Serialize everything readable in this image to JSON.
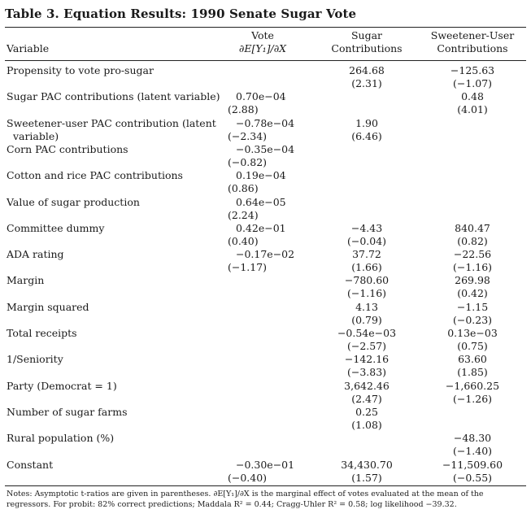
{
  "title": "Table 3.  Equation Results: 1990 Senate Sugar Vote",
  "columns": {
    "variable": "Variable",
    "vote_line1": "Vote",
    "vote_line2": "∂E[Y₁]/∂X",
    "sugar_line1": "Sugar",
    "sugar_line2": "Contributions",
    "sweet_line1": "Sweetener-User",
    "sweet_line2": "Contributions"
  },
  "rows": [
    {
      "label": "Propensity to vote pro-sugar",
      "vote": "",
      "vote_t": "",
      "sugar": "264.68",
      "sugar_t": "(2.31)",
      "sweet": "−125.63",
      "sweet_t": "(−1.07)"
    },
    {
      "label": "Sugar PAC contributions (latent variable)",
      "vote": "0.70e−04",
      "vote_t": "(2.88)",
      "sugar": "",
      "sugar_t": "",
      "sweet": "0.48",
      "sweet_t": "(4.01)"
    },
    {
      "label": "Sweetener-user PAC contribution (latent\n  variable)",
      "vote": "−0.78e−04",
      "vote_t": "(−2.34)",
      "sugar": "1.90",
      "sugar_t": "(6.46)",
      "sweet": "",
      "sweet_t": ""
    },
    {
      "label": "Corn PAC contributions",
      "vote": "−0.35e−04",
      "vote_t": "(−0.82)",
      "sugar": "",
      "sugar_t": "",
      "sweet": "",
      "sweet_t": ""
    },
    {
      "label": "Cotton and rice PAC contributions",
      "vote": "0.19e−04",
      "vote_t": "(0.86)",
      "sugar": "",
      "sugar_t": "",
      "sweet": "",
      "sweet_t": ""
    },
    {
      "label": "Value of sugar production",
      "vote": "0.64e−05",
      "vote_t": "(2.24)",
      "sugar": "",
      "sugar_t": "",
      "sweet": "",
      "sweet_t": ""
    },
    {
      "label": "Committee dummy",
      "vote": "0.42e−01",
      "vote_t": "(0.40)",
      "sugar": "−4.43",
      "sugar_t": "(−0.04)",
      "sweet": "840.47",
      "sweet_t": "(0.82)"
    },
    {
      "label": "ADA rating",
      "vote": "−0.17e−02",
      "vote_t": "(−1.17)",
      "sugar": "37.72",
      "sugar_t": "(1.66)",
      "sweet": "−22.56",
      "sweet_t": "(−1.16)"
    },
    {
      "label": "Margin",
      "vote": "",
      "vote_t": "",
      "sugar": "−780.60",
      "sugar_t": "(−1.16)",
      "sweet": "269.98",
      "sweet_t": "(0.42)"
    },
    {
      "label": "Margin squared",
      "vote": "",
      "vote_t": "",
      "sugar": "4.13",
      "sugar_t": "(0.79)",
      "sweet": "−1.15",
      "sweet_t": "(−0.23)"
    },
    {
      "label": "Total receipts",
      "vote": "",
      "vote_t": "",
      "sugar": "−0.54e−03",
      "sugar_t": "(−2.57)",
      "sweet": "0.13e−03",
      "sweet_t": "(0.75)"
    },
    {
      "label": "1/Seniority",
      "vote": "",
      "vote_t": "",
      "sugar": "−142.16",
      "sugar_t": "(−3.83)",
      "sweet": "63.60",
      "sweet_t": "(1.85)"
    },
    {
      "label": "Party (Democrat = 1)",
      "vote": "",
      "vote_t": "",
      "sugar": "3,642.46",
      "sugar_t": "(2.47)",
      "sweet": "−1,660.25",
      "sweet_t": "(−1.26)"
    },
    {
      "label": "Number of sugar farms",
      "vote": "",
      "vote_t": "",
      "sugar": "0.25",
      "sugar_t": "(1.08)",
      "sweet": "",
      "sweet_t": ""
    },
    {
      "label": "Rural population (%)",
      "vote": "",
      "vote_t": "",
      "sugar": "",
      "sugar_t": "",
      "sweet": "−48.30",
      "sweet_t": "(−1.40)"
    },
    {
      "label": "Constant",
      "vote": "−0.30e−01",
      "vote_t": "(−0.40)",
      "sugar": "34,430.70",
      "sugar_t": "(1.57)",
      "sweet": "−11,509.60",
      "sweet_t": "(−0.55)"
    }
  ],
  "notes": "Notes: Asymptotic t-ratios are given in parentheses. ∂E[Y₁]/∂X is the marginal effect of votes evaluated at the mean of the regressors. For probit: 82% correct predictions; Maddala R² = 0.44; Cragg-Uhler R² = 0.58; log likelihood −39.32."
}
